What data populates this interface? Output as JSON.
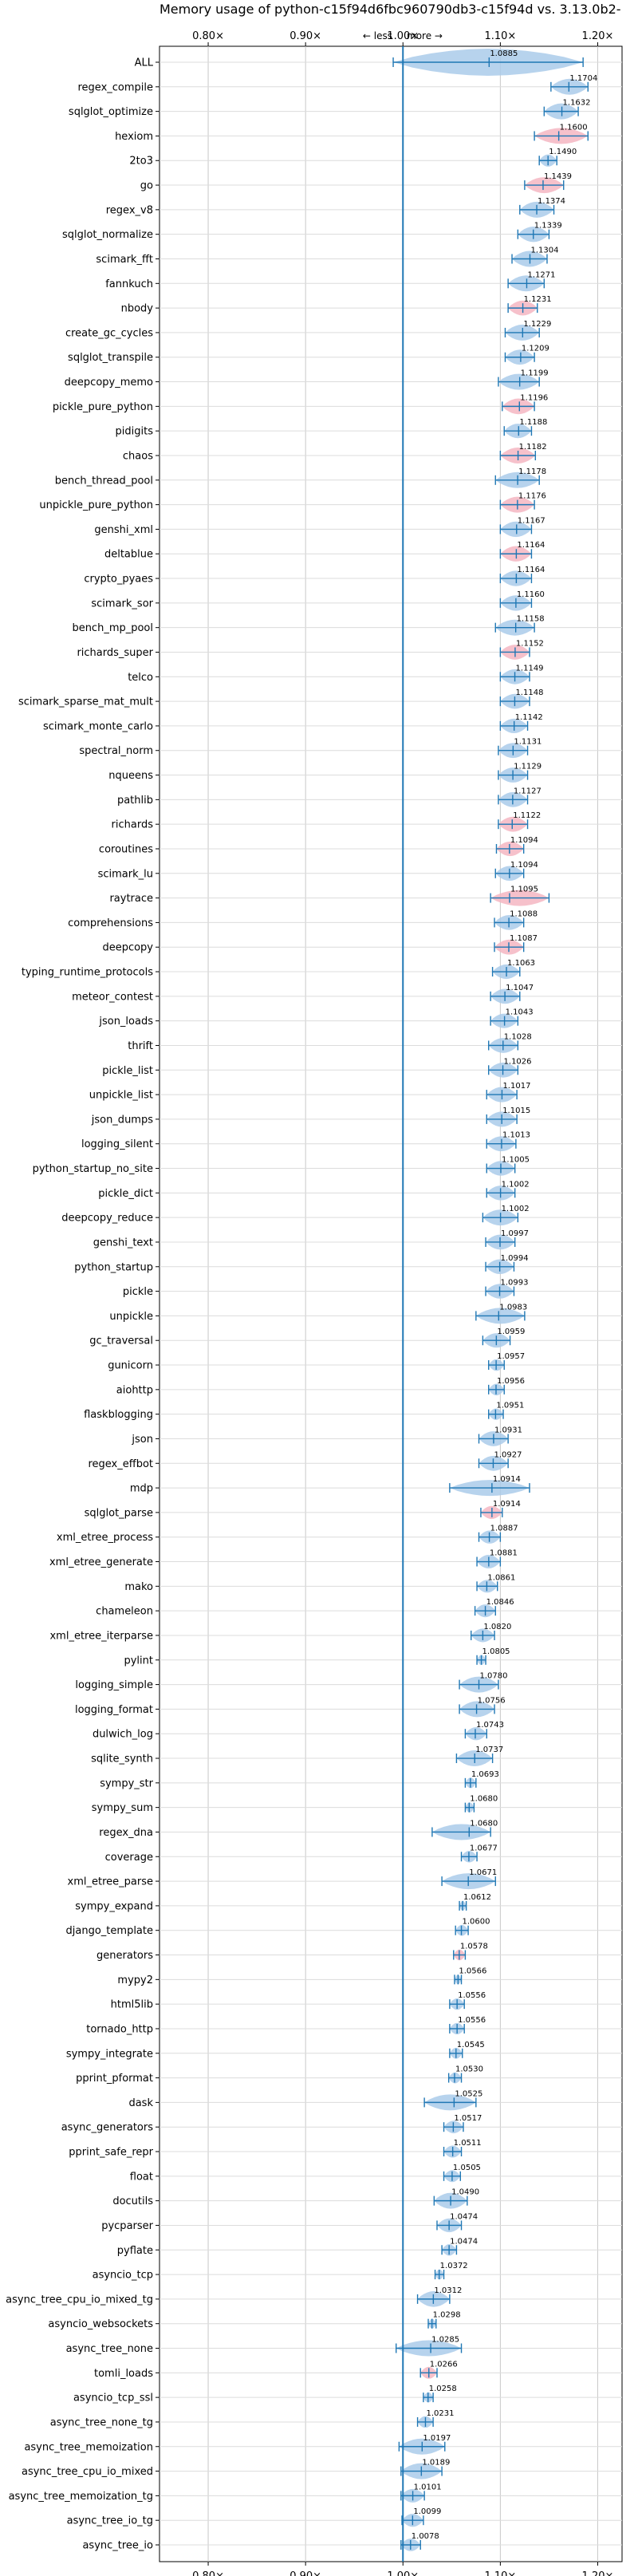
{
  "chart_data": {
    "type": "violin",
    "title": "Memory usage of python-c15f94d6fbc960790db3-c15f94d vs. 3.13.0b2-",
    "xlabel": "",
    "ylabel": "",
    "xlim": [
      0.75,
      1.225
    ],
    "x_ticks": [
      0.8,
      0.9,
      1.0,
      1.1,
      1.2
    ],
    "x_tick_labels": [
      "0.80×",
      "0.90×",
      "1.00×",
      "1.10×",
      "1.20×"
    ],
    "reference_line": 1.0,
    "annotation_left": "← less",
    "annotation_right": "more →",
    "grid": true,
    "colors": {
      "normal": "#aacbea",
      "flagged": "#f4b6c2",
      "line": "#1f77b4"
    },
    "items": [
      {
        "name": "ALL",
        "value": 1.0885,
        "label": "1.0885",
        "lo": 0.99,
        "hi": 1.185,
        "flag": false
      },
      {
        "name": "regex_compile",
        "value": 1.1704,
        "label": "1.1704",
        "lo": 1.152,
        "hi": 1.19,
        "flag": false
      },
      {
        "name": "sqlglot_optimize",
        "value": 1.1632,
        "label": "1.1632",
        "lo": 1.145,
        "hi": 1.18,
        "flag": false
      },
      {
        "name": "hexiom",
        "value": 1.16,
        "label": "1.1600",
        "lo": 1.135,
        "hi": 1.19,
        "flag": true
      },
      {
        "name": "2to3",
        "value": 1.149,
        "label": "1.1490",
        "lo": 1.14,
        "hi": 1.158,
        "flag": false
      },
      {
        "name": "go",
        "value": 1.1439,
        "label": "1.1439",
        "lo": 1.125,
        "hi": 1.165,
        "flag": true
      },
      {
        "name": "regex_v8",
        "value": 1.1374,
        "label": "1.1374",
        "lo": 1.12,
        "hi": 1.155,
        "flag": false
      },
      {
        "name": "sqlglot_normalize",
        "value": 1.1339,
        "label": "1.1339",
        "lo": 1.118,
        "hi": 1.15,
        "flag": false
      },
      {
        "name": "scimark_fft",
        "value": 1.1304,
        "label": "1.1304",
        "lo": 1.112,
        "hi": 1.148,
        "flag": false
      },
      {
        "name": "fannkuch",
        "value": 1.1271,
        "label": "1.1271",
        "lo": 1.108,
        "hi": 1.145,
        "flag": false
      },
      {
        "name": "nbody",
        "value": 1.1231,
        "label": "1.1231",
        "lo": 1.108,
        "hi": 1.138,
        "flag": true
      },
      {
        "name": "create_gc_cycles",
        "value": 1.1229,
        "label": "1.1229",
        "lo": 1.105,
        "hi": 1.14,
        "flag": false
      },
      {
        "name": "sqlglot_transpile",
        "value": 1.1209,
        "label": "1.1209",
        "lo": 1.105,
        "hi": 1.135,
        "flag": false
      },
      {
        "name": "deepcopy_memo",
        "value": 1.1199,
        "label": "1.1199",
        "lo": 1.098,
        "hi": 1.14,
        "flag": false
      },
      {
        "name": "pickle_pure_python",
        "value": 1.1196,
        "label": "1.1196",
        "lo": 1.102,
        "hi": 1.135,
        "flag": true
      },
      {
        "name": "pidigits",
        "value": 1.1188,
        "label": "1.1188",
        "lo": 1.104,
        "hi": 1.132,
        "flag": false
      },
      {
        "name": "chaos",
        "value": 1.1182,
        "label": "1.1182",
        "lo": 1.1,
        "hi": 1.136,
        "flag": true
      },
      {
        "name": "bench_thread_pool",
        "value": 1.1178,
        "label": "1.1178",
        "lo": 1.095,
        "hi": 1.14,
        "flag": false
      },
      {
        "name": "unpickle_pure_python",
        "value": 1.1176,
        "label": "1.1176",
        "lo": 1.1,
        "hi": 1.135,
        "flag": true
      },
      {
        "name": "genshi_xml",
        "value": 1.1167,
        "label": "1.1167",
        "lo": 1.1,
        "hi": 1.132,
        "flag": false
      },
      {
        "name": "deltablue",
        "value": 1.1164,
        "label": "1.1164",
        "lo": 1.1,
        "hi": 1.132,
        "flag": true
      },
      {
        "name": "crypto_pyaes",
        "value": 1.1164,
        "label": "1.1164",
        "lo": 1.1,
        "hi": 1.132,
        "flag": false
      },
      {
        "name": "scimark_sor",
        "value": 1.116,
        "label": "1.1160",
        "lo": 1.1,
        "hi": 1.132,
        "flag": false
      },
      {
        "name": "bench_mp_pool",
        "value": 1.1158,
        "label": "1.1158",
        "lo": 1.095,
        "hi": 1.135,
        "flag": false
      },
      {
        "name": "richards_super",
        "value": 1.1152,
        "label": "1.1152",
        "lo": 1.1,
        "hi": 1.13,
        "flag": true
      },
      {
        "name": "telco",
        "value": 1.1149,
        "label": "1.1149",
        "lo": 1.1,
        "hi": 1.13,
        "flag": false
      },
      {
        "name": "scimark_sparse_mat_mult",
        "value": 1.1148,
        "label": "1.1148",
        "lo": 1.1,
        "hi": 1.13,
        "flag": false
      },
      {
        "name": "scimark_monte_carlo",
        "value": 1.1142,
        "label": "1.1142",
        "lo": 1.1,
        "hi": 1.128,
        "flag": false
      },
      {
        "name": "spectral_norm",
        "value": 1.1131,
        "label": "1.1131",
        "lo": 1.098,
        "hi": 1.128,
        "flag": false
      },
      {
        "name": "nqueens",
        "value": 1.1129,
        "label": "1.1129",
        "lo": 1.098,
        "hi": 1.128,
        "flag": false
      },
      {
        "name": "pathlib",
        "value": 1.1127,
        "label": "1.1127",
        "lo": 1.098,
        "hi": 1.128,
        "flag": false
      },
      {
        "name": "richards",
        "value": 1.1122,
        "label": "1.1122",
        "lo": 1.098,
        "hi": 1.128,
        "flag": true
      },
      {
        "name": "coroutines",
        "value": 1.1094,
        "label": "1.1094",
        "lo": 1.096,
        "hi": 1.124,
        "flag": true
      },
      {
        "name": "scimark_lu",
        "value": 1.1094,
        "label": "1.1094",
        "lo": 1.095,
        "hi": 1.124,
        "flag": false
      },
      {
        "name": "raytrace",
        "value": 1.1095,
        "label": "1.1095",
        "lo": 1.09,
        "hi": 1.15,
        "flag": true
      },
      {
        "name": "comprehensions",
        "value": 1.1088,
        "label": "1.1088",
        "lo": 1.094,
        "hi": 1.124,
        "flag": false
      },
      {
        "name": "deepcopy",
        "value": 1.1087,
        "label": "1.1087",
        "lo": 1.094,
        "hi": 1.124,
        "flag": true
      },
      {
        "name": "typing_runtime_protocols",
        "value": 1.1063,
        "label": "1.1063",
        "lo": 1.092,
        "hi": 1.12,
        "flag": false
      },
      {
        "name": "meteor_contest",
        "value": 1.1047,
        "label": "1.1047",
        "lo": 1.09,
        "hi": 1.12,
        "flag": false
      },
      {
        "name": "json_loads",
        "value": 1.1043,
        "label": "1.1043",
        "lo": 1.09,
        "hi": 1.118,
        "flag": false
      },
      {
        "name": "thrift",
        "value": 1.1028,
        "label": "1.1028",
        "lo": 1.088,
        "hi": 1.118,
        "flag": false
      },
      {
        "name": "pickle_list",
        "value": 1.1026,
        "label": "1.1026",
        "lo": 1.088,
        "hi": 1.118,
        "flag": false
      },
      {
        "name": "unpickle_list",
        "value": 1.1017,
        "label": "1.1017",
        "lo": 1.086,
        "hi": 1.117,
        "flag": false
      },
      {
        "name": "json_dumps",
        "value": 1.1015,
        "label": "1.1015",
        "lo": 1.086,
        "hi": 1.117,
        "flag": false
      },
      {
        "name": "logging_silent",
        "value": 1.1013,
        "label": "1.1013",
        "lo": 1.086,
        "hi": 1.116,
        "flag": false
      },
      {
        "name": "python_startup_no_site",
        "value": 1.1005,
        "label": "1.1005",
        "lo": 1.086,
        "hi": 1.115,
        "flag": false
      },
      {
        "name": "pickle_dict",
        "value": 1.1002,
        "label": "1.1002",
        "lo": 1.086,
        "hi": 1.115,
        "flag": false
      },
      {
        "name": "deepcopy_reduce",
        "value": 1.1002,
        "label": "1.1002",
        "lo": 1.082,
        "hi": 1.118,
        "flag": false
      },
      {
        "name": "genshi_text",
        "value": 1.0997,
        "label": "1.0997",
        "lo": 1.085,
        "hi": 1.115,
        "flag": false
      },
      {
        "name": "python_startup",
        "value": 1.0994,
        "label": "1.0994",
        "lo": 1.085,
        "hi": 1.114,
        "flag": false
      },
      {
        "name": "pickle",
        "value": 1.0993,
        "label": "1.0993",
        "lo": 1.085,
        "hi": 1.114,
        "flag": false
      },
      {
        "name": "unpickle",
        "value": 1.0983,
        "label": "1.0983",
        "lo": 1.075,
        "hi": 1.125,
        "flag": false
      },
      {
        "name": "gc_traversal",
        "value": 1.0959,
        "label": "1.0959",
        "lo": 1.082,
        "hi": 1.11,
        "flag": false
      },
      {
        "name": "gunicorn",
        "value": 1.0957,
        "label": "1.0957",
        "lo": 1.088,
        "hi": 1.104,
        "flag": false
      },
      {
        "name": "aiohttp",
        "value": 1.0956,
        "label": "1.0956",
        "lo": 1.088,
        "hi": 1.104,
        "flag": false
      },
      {
        "name": "flaskblogging",
        "value": 1.0951,
        "label": "1.0951",
        "lo": 1.088,
        "hi": 1.103,
        "flag": false
      },
      {
        "name": "json",
        "value": 1.0931,
        "label": "1.0931",
        "lo": 1.078,
        "hi": 1.108,
        "flag": false
      },
      {
        "name": "regex_effbot",
        "value": 1.0927,
        "label": "1.0927",
        "lo": 1.078,
        "hi": 1.108,
        "flag": false
      },
      {
        "name": "mdp",
        "value": 1.0914,
        "label": "1.0914",
        "lo": 1.048,
        "hi": 1.13,
        "flag": false
      },
      {
        "name": "sqlglot_parse",
        "value": 1.0914,
        "label": "1.0914",
        "lo": 1.08,
        "hi": 1.102,
        "flag": true
      },
      {
        "name": "xml_etree_process",
        "value": 1.0887,
        "label": "1.0887",
        "lo": 1.078,
        "hi": 1.1,
        "flag": false
      },
      {
        "name": "xml_etree_generate",
        "value": 1.0881,
        "label": "1.0881",
        "lo": 1.076,
        "hi": 1.1,
        "flag": false
      },
      {
        "name": "mako",
        "value": 1.0861,
        "label": "1.0861",
        "lo": 1.076,
        "hi": 1.097,
        "flag": false
      },
      {
        "name": "chameleon",
        "value": 1.0846,
        "label": "1.0846",
        "lo": 1.074,
        "hi": 1.095,
        "flag": false
      },
      {
        "name": "xml_etree_iterparse",
        "value": 1.082,
        "label": "1.0820",
        "lo": 1.07,
        "hi": 1.094,
        "flag": false
      },
      {
        "name": "pylint",
        "value": 1.0805,
        "label": "1.0805",
        "lo": 1.076,
        "hi": 1.085,
        "flag": false
      },
      {
        "name": "logging_simple",
        "value": 1.078,
        "label": "1.0780",
        "lo": 1.058,
        "hi": 1.098,
        "flag": false
      },
      {
        "name": "logging_format",
        "value": 1.0756,
        "label": "1.0756",
        "lo": 1.058,
        "hi": 1.094,
        "flag": false
      },
      {
        "name": "dulwich_log",
        "value": 1.0743,
        "label": "1.0743",
        "lo": 1.064,
        "hi": 1.086,
        "flag": false
      },
      {
        "name": "sqlite_synth",
        "value": 1.0737,
        "label": "1.0737",
        "lo": 1.055,
        "hi": 1.092,
        "flag": false
      },
      {
        "name": "sympy_str",
        "value": 1.0693,
        "label": "1.0693",
        "lo": 1.064,
        "hi": 1.075,
        "flag": false
      },
      {
        "name": "sympy_sum",
        "value": 1.068,
        "label": "1.0680",
        "lo": 1.064,
        "hi": 1.073,
        "flag": false
      },
      {
        "name": "regex_dna",
        "value": 1.068,
        "label": "1.0680",
        "lo": 1.03,
        "hi": 1.09,
        "flag": false
      },
      {
        "name": "coverage",
        "value": 1.0677,
        "label": "1.0677",
        "lo": 1.06,
        "hi": 1.076,
        "flag": false
      },
      {
        "name": "xml_etree_parse",
        "value": 1.0671,
        "label": "1.0671",
        "lo": 1.04,
        "hi": 1.095,
        "flag": false
      },
      {
        "name": "sympy_expand",
        "value": 1.0612,
        "label": "1.0612",
        "lo": 1.058,
        "hi": 1.065,
        "flag": false
      },
      {
        "name": "django_template",
        "value": 1.06,
        "label": "1.0600",
        "lo": 1.054,
        "hi": 1.067,
        "flag": false
      },
      {
        "name": "generators",
        "value": 1.0578,
        "label": "1.0578",
        "lo": 1.052,
        "hi": 1.064,
        "flag": true
      },
      {
        "name": "mypy2",
        "value": 1.0566,
        "label": "1.0566",
        "lo": 1.053,
        "hi": 1.06,
        "flag": false
      },
      {
        "name": "html5lib",
        "value": 1.0556,
        "label": "1.0556",
        "lo": 1.048,
        "hi": 1.063,
        "flag": false
      },
      {
        "name": "tornado_http",
        "value": 1.0556,
        "label": "1.0556",
        "lo": 1.048,
        "hi": 1.063,
        "flag": false
      },
      {
        "name": "sympy_integrate",
        "value": 1.0545,
        "label": "1.0545",
        "lo": 1.048,
        "hi": 1.061,
        "flag": false
      },
      {
        "name": "pprint_pformat",
        "value": 1.053,
        "label": "1.0530",
        "lo": 1.047,
        "hi": 1.06,
        "flag": false
      },
      {
        "name": "dask",
        "value": 1.0525,
        "label": "1.0525",
        "lo": 1.022,
        "hi": 1.075,
        "flag": false
      },
      {
        "name": "async_generators",
        "value": 1.0517,
        "label": "1.0517",
        "lo": 1.042,
        "hi": 1.062,
        "flag": false
      },
      {
        "name": "pprint_safe_repr",
        "value": 1.0511,
        "label": "1.0511",
        "lo": 1.042,
        "hi": 1.06,
        "flag": false
      },
      {
        "name": "float",
        "value": 1.0505,
        "label": "1.0505",
        "lo": 1.042,
        "hi": 1.059,
        "flag": false
      },
      {
        "name": "docutils",
        "value": 1.049,
        "label": "1.0490",
        "lo": 1.032,
        "hi": 1.066,
        "flag": false
      },
      {
        "name": "pycparser",
        "value": 1.0474,
        "label": "1.0474",
        "lo": 1.035,
        "hi": 1.06,
        "flag": false
      },
      {
        "name": "pyflate",
        "value": 1.0474,
        "label": "1.0474",
        "lo": 1.04,
        "hi": 1.055,
        "flag": false
      },
      {
        "name": "asyncio_tcp",
        "value": 1.0372,
        "label": "1.0372",
        "lo": 1.033,
        "hi": 1.042,
        "flag": false
      },
      {
        "name": "async_tree_cpu_io_mixed_tg",
        "value": 1.0312,
        "label": "1.0312",
        "lo": 1.015,
        "hi": 1.048,
        "flag": false
      },
      {
        "name": "asyncio_websockets",
        "value": 1.0298,
        "label": "1.0298",
        "lo": 1.026,
        "hi": 1.034,
        "flag": false
      },
      {
        "name": "async_tree_none",
        "value": 1.0285,
        "label": "1.0285",
        "lo": 0.993,
        "hi": 1.06,
        "flag": false
      },
      {
        "name": "tomli_loads",
        "value": 1.0266,
        "label": "1.0266",
        "lo": 1.018,
        "hi": 1.035,
        "flag": true
      },
      {
        "name": "asyncio_tcp_ssl",
        "value": 1.0258,
        "label": "1.0258",
        "lo": 1.021,
        "hi": 1.031,
        "flag": false
      },
      {
        "name": "async_tree_none_tg",
        "value": 1.0231,
        "label": "1.0231",
        "lo": 1.015,
        "hi": 1.031,
        "flag": false
      },
      {
        "name": "async_tree_memoization",
        "value": 1.0197,
        "label": "1.0197",
        "lo": 0.996,
        "hi": 1.043,
        "flag": false
      },
      {
        "name": "async_tree_cpu_io_mixed",
        "value": 1.0189,
        "label": "1.0189",
        "lo": 0.998,
        "hi": 1.04,
        "flag": false
      },
      {
        "name": "async_tree_memoization_tg",
        "value": 1.0101,
        "label": "1.0101",
        "lo": 0.998,
        "hi": 1.022,
        "flag": false
      },
      {
        "name": "async_tree_io_tg",
        "value": 1.0099,
        "label": "1.0099",
        "lo": 0.999,
        "hi": 1.021,
        "flag": false
      },
      {
        "name": "async_tree_io",
        "value": 1.0078,
        "label": "1.0078",
        "lo": 0.998,
        "hi": 1.018,
        "flag": false
      }
    ]
  }
}
